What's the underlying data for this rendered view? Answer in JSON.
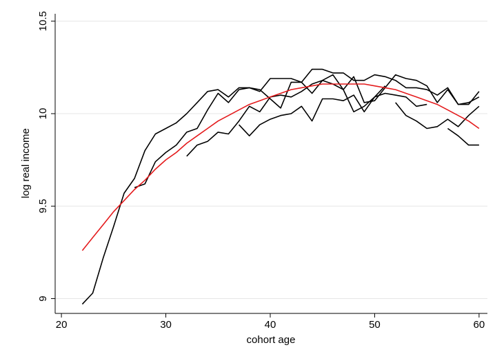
{
  "chart_data": {
    "type": "line",
    "x_label": "cohort age",
    "y_label": "log real income",
    "x": [
      22,
      23,
      24,
      25,
      26,
      27,
      28,
      29,
      30,
      31,
      32,
      33,
      34,
      35,
      36,
      37,
      38,
      39,
      40,
      41,
      42,
      43,
      44,
      45,
      46,
      47,
      48,
      49,
      50,
      51,
      52,
      53,
      54,
      55,
      56,
      57,
      58,
      59,
      60
    ],
    "series": [
      {
        "color": "#000000",
        "values": [
          8.97,
          9.03,
          9.22,
          9.39,
          9.57,
          9.65,
          9.8,
          9.89,
          9.92,
          9.95,
          10.0,
          10.06,
          10.12,
          10.13,
          10.09,
          10.14,
          10.14,
          10.12,
          10.19,
          10.19,
          10.19,
          10.17,
          10.24,
          10.24,
          10.22,
          10.22,
          10.18,
          10.18,
          10.21,
          10.2,
          10.18,
          10.14,
          10.14,
          10.13,
          10.1,
          10.14,
          10.05,
          10.05,
          10.12
        ]
      },
      {
        "color": "#000000",
        "values": [
          null,
          null,
          null,
          null,
          null,
          9.6,
          9.62,
          9.74,
          9.79,
          9.83,
          9.9,
          9.92,
          10.02,
          10.11,
          10.06,
          10.13,
          10.14,
          10.13,
          10.08,
          10.03,
          10.17,
          10.17,
          10.11,
          10.18,
          10.21,
          10.13,
          10.2,
          10.06,
          10.07,
          10.14,
          10.21,
          10.19,
          10.18,
          10.15,
          10.06,
          10.13,
          10.05,
          10.06,
          10.09
        ]
      },
      {
        "color": "#000000",
        "values": [
          null,
          null,
          null,
          null,
          null,
          null,
          null,
          null,
          null,
          null,
          9.77,
          9.83,
          9.85,
          9.9,
          9.89,
          9.96,
          10.04,
          10.01,
          10.09,
          10.1,
          10.09,
          10.12,
          10.16,
          10.18,
          10.16,
          10.13,
          10.01,
          10.04,
          10.09,
          10.11,
          10.1,
          10.09,
          10.04,
          10.05,
          null,
          null,
          null,
          null,
          null
        ]
      },
      {
        "color": "#000000",
        "values": [
          null,
          null,
          null,
          null,
          null,
          null,
          null,
          null,
          null,
          null,
          null,
          null,
          null,
          null,
          null,
          9.94,
          9.88,
          9.94,
          9.97,
          9.99,
          10.0,
          10.04,
          9.96,
          10.08,
          10.08,
          10.07,
          10.1,
          10.01,
          10.09,
          10.15,
          null,
          null,
          null,
          null,
          null,
          null,
          null,
          null,
          null
        ]
      },
      {
        "color": "#000000",
        "values": [
          null,
          null,
          null,
          null,
          null,
          null,
          null,
          null,
          null,
          null,
          null,
          null,
          null,
          null,
          null,
          null,
          null,
          null,
          null,
          null,
          null,
          null,
          null,
          null,
          null,
          null,
          null,
          null,
          null,
          null,
          10.06,
          9.99,
          9.96,
          9.92,
          9.93,
          9.97,
          9.93,
          9.99,
          10.04
        ]
      },
      {
        "color": "#000000",
        "values": [
          null,
          null,
          null,
          null,
          null,
          null,
          null,
          null,
          null,
          null,
          null,
          null,
          null,
          null,
          null,
          null,
          null,
          null,
          null,
          null,
          null,
          null,
          null,
          null,
          null,
          null,
          null,
          null,
          null,
          null,
          null,
          null,
          null,
          null,
          null,
          9.92,
          9.88,
          9.83,
          9.83
        ]
      },
      {
        "color": "#e41a1c",
        "values": [
          9.26,
          9.33,
          9.4,
          9.47,
          9.53,
          9.59,
          9.64,
          9.7,
          9.75,
          9.79,
          9.84,
          9.88,
          9.92,
          9.96,
          9.99,
          10.02,
          10.05,
          10.07,
          10.09,
          10.11,
          10.13,
          10.14,
          10.15,
          10.16,
          10.16,
          10.16,
          10.16,
          10.16,
          10.15,
          10.14,
          10.13,
          10.11,
          10.09,
          10.07,
          10.05,
          10.02,
          9.99,
          9.96,
          9.92
        ]
      }
    ],
    "xlim": [
      19.4,
      60.8
    ],
    "ylim": [
      8.92,
      10.54
    ],
    "xticks": [
      20,
      30,
      40,
      50,
      60
    ],
    "yticks": [
      9,
      9.5,
      10,
      10.5
    ],
    "grid": true
  }
}
